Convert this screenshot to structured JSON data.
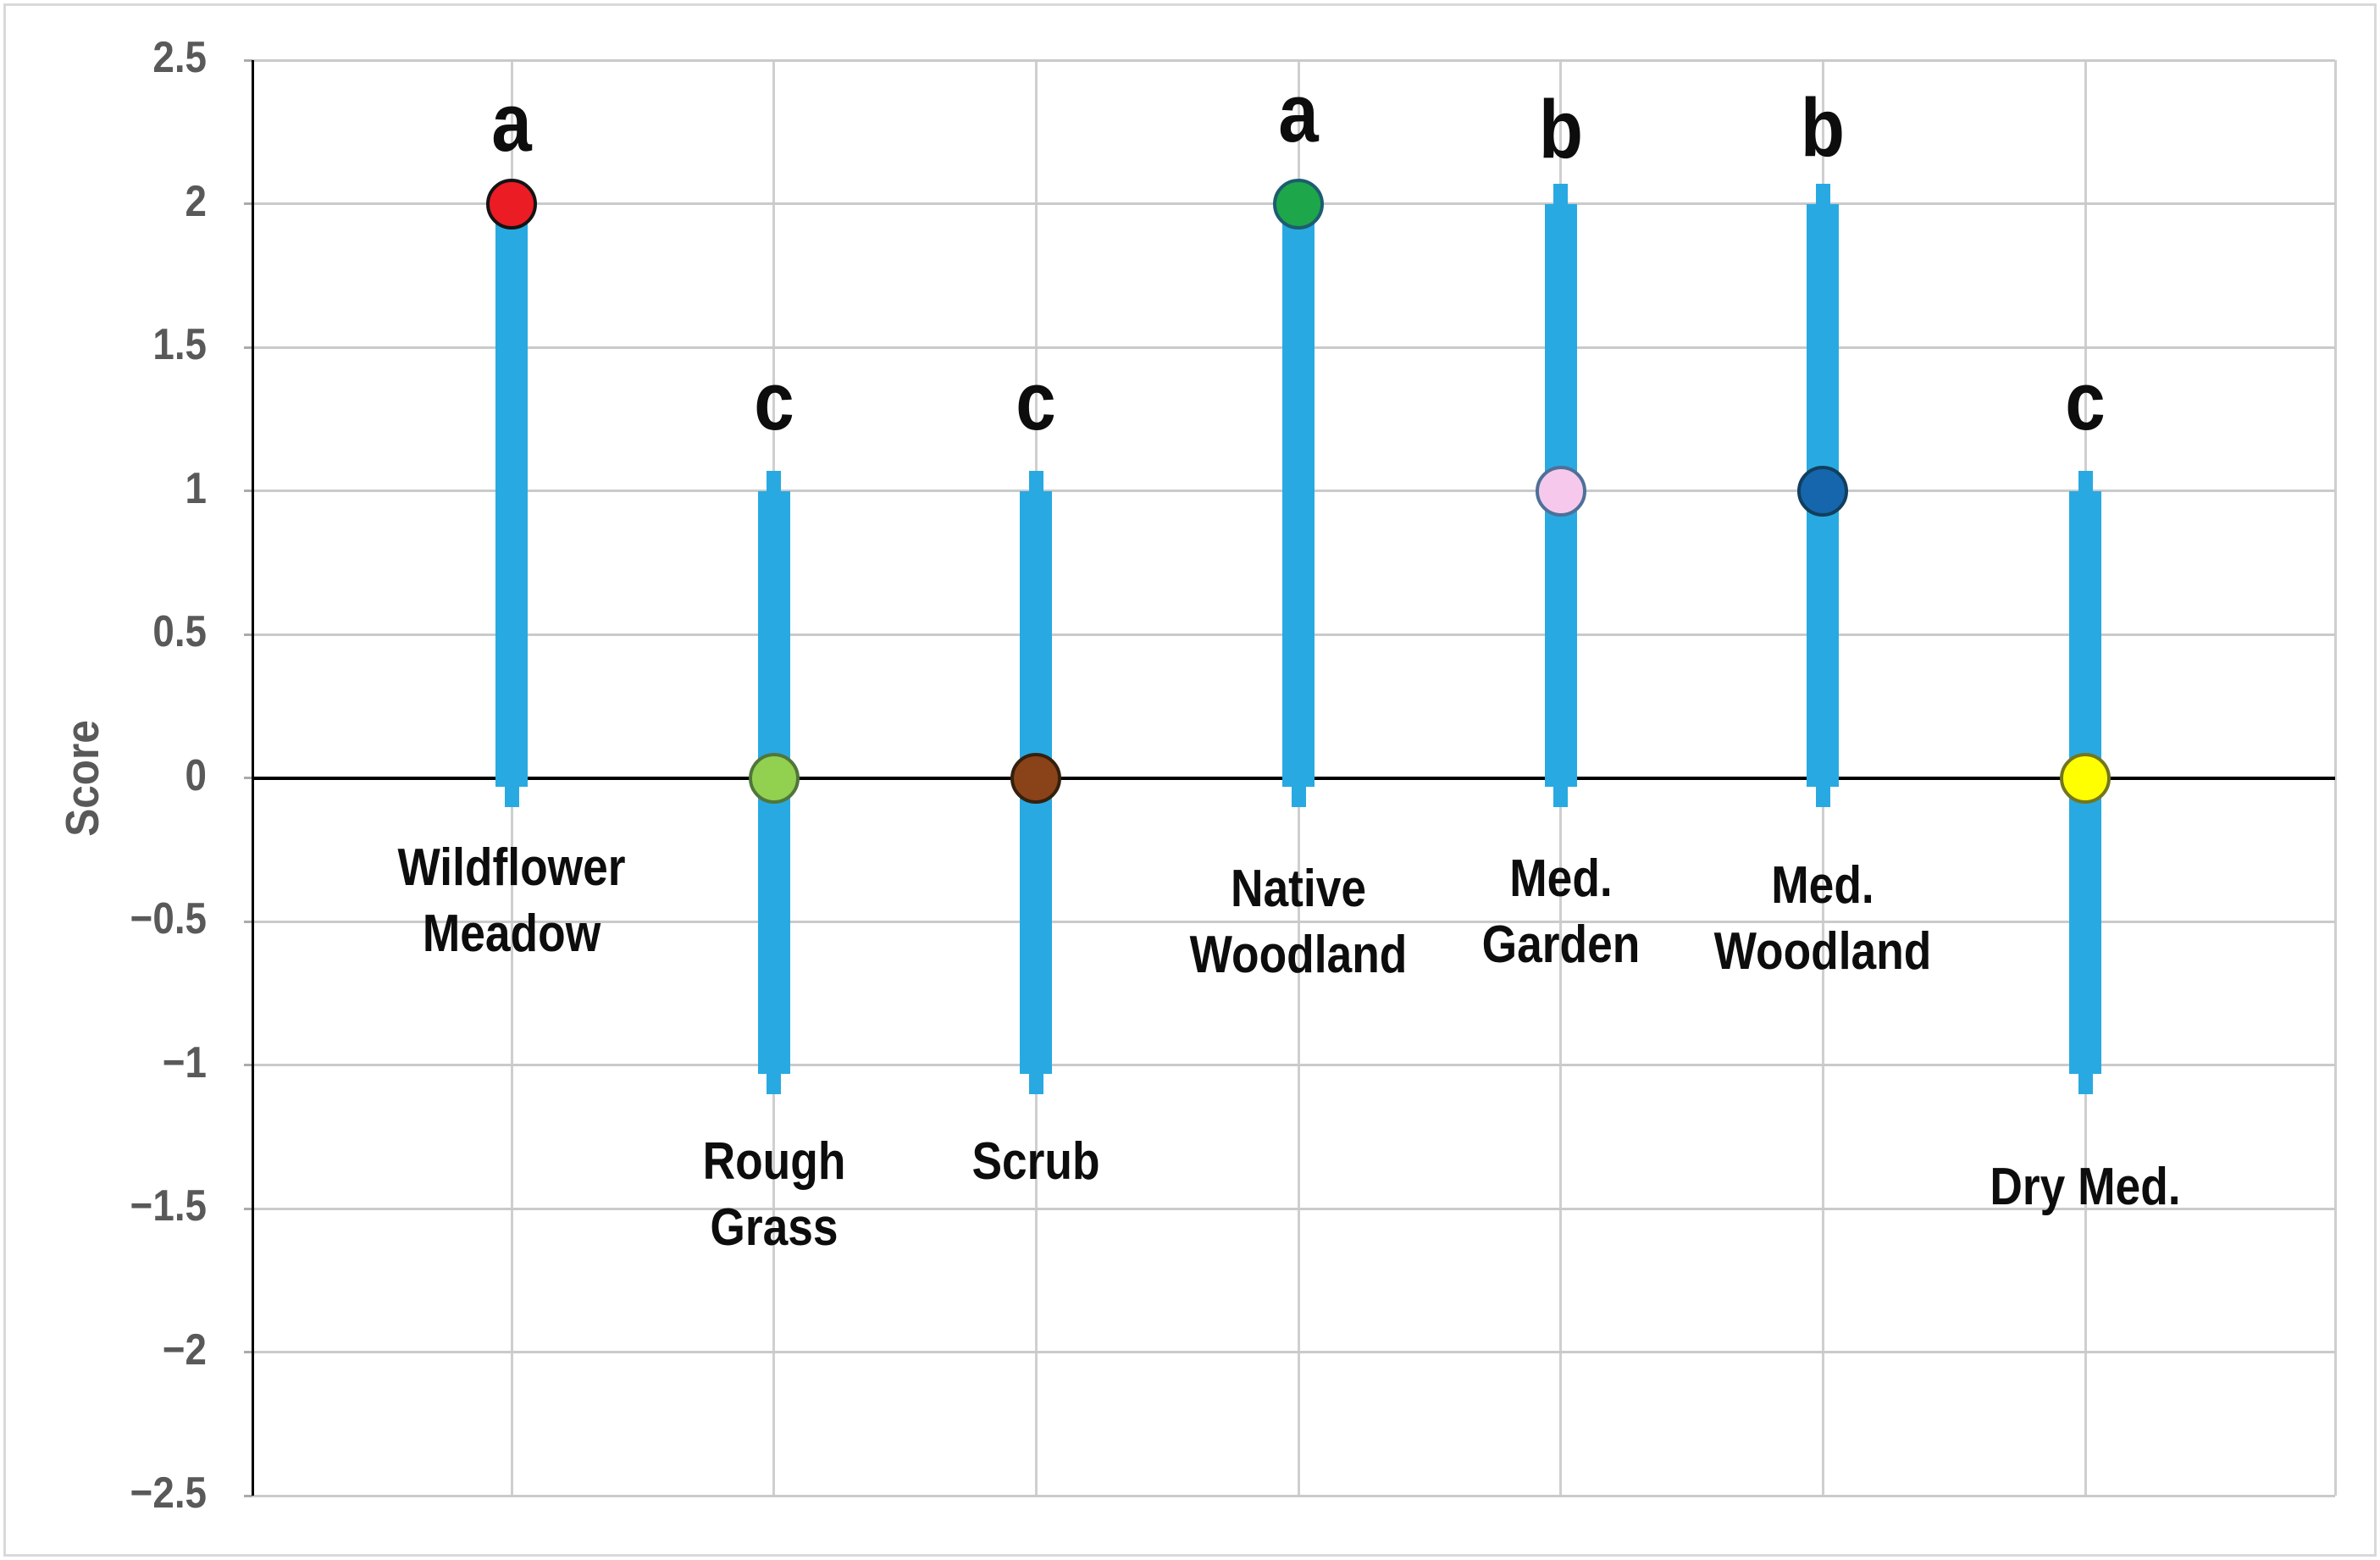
{
  "figure": {
    "background": "#FFFFFF",
    "border_color": "#D9D9D9",
    "gridline_color": "#C9CACB",
    "axis_color": "#000000",
    "tick_label_color": "#595959",
    "error_bar_color": "#29A9E1"
  },
  "chart_data": {
    "type": "scatter",
    "title": "",
    "xlabel": "",
    "ylabel": "Score",
    "ylim": [
      -2.5,
      2.5
    ],
    "yticks": [
      2.5,
      2,
      1.5,
      1,
      0.5,
      0,
      -0.5,
      -1,
      -1.5,
      -2,
      -2.5
    ],
    "ytick_labels": [
      "2.5",
      "2",
      "1.5",
      "1",
      "0.5",
      "0",
      "−0.5",
      "−1",
      "−1.5",
      "−2",
      "−2.5"
    ],
    "grid": true,
    "legend": "none",
    "categories": [
      "Wildflower Meadow",
      "Rough Grass",
      "Scrub",
      "Native Woodland",
      "Med. Garden",
      "Med. Woodland",
      "Dry Med."
    ],
    "points": [
      {
        "category": "Wildflower Meadow",
        "label_lines": [
          "Wildflower",
          "Meadow"
        ],
        "letter": "a",
        "value": 2,
        "range_low": 0,
        "range_high": 2,
        "marker_color": "#EC1C24",
        "marker_outline": "#141414"
      },
      {
        "category": "Rough Grass",
        "label_lines": [
          "Rough",
          "Grass"
        ],
        "letter": "c",
        "value": 0,
        "range_low": -1,
        "range_high": 1,
        "marker_color": "#92D050",
        "marker_outline": "#50763B"
      },
      {
        "category": "Scrub",
        "label_lines": [
          "Scrub"
        ],
        "letter": "c",
        "value": 0,
        "range_low": -1,
        "range_high": 1,
        "marker_color": "#8A4218",
        "marker_outline": "#33200F"
      },
      {
        "category": "Native Woodland",
        "label_lines": [
          "Native",
          "Woodland"
        ],
        "letter": "a",
        "value": 2,
        "range_low": 0,
        "range_high": 2,
        "marker_color": "#1DA64A",
        "marker_outline": "#1C5D70"
      },
      {
        "category": "Med. Garden",
        "label_lines": [
          "Med.",
          "Garden"
        ],
        "letter": "b",
        "value": 1,
        "range_low": 0,
        "range_high": 2,
        "marker_color": "#F6C9EC",
        "marker_outline": "#4E7099"
      },
      {
        "category": "Med. Woodland",
        "label_lines": [
          "Med.",
          "Woodland"
        ],
        "letter": "b",
        "value": 1,
        "range_low": 0,
        "range_high": 2,
        "marker_color": "#1566AC",
        "marker_outline": "#123F5E"
      },
      {
        "category": "Dry Med.",
        "label_lines": [
          "Dry Med."
        ],
        "letter": "c",
        "value": 0,
        "range_low": -1,
        "range_high": 1,
        "marker_color": "#FFFF00",
        "marker_outline": "#72761F"
      }
    ]
  }
}
